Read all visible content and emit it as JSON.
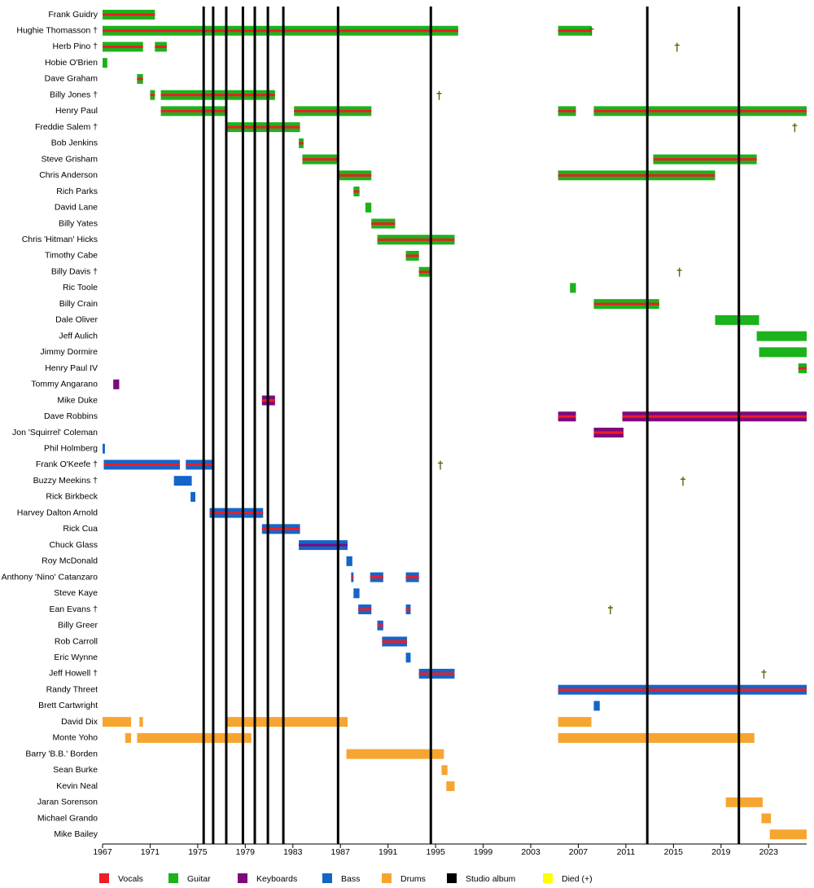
{
  "chart_data": {
    "type": "timeline",
    "xlim": [
      1967,
      2026.2
    ],
    "xticks": [
      1967,
      1971,
      1975,
      1979,
      1983,
      1987,
      1991,
      1995,
      1999,
      2003,
      2007,
      2011,
      2015,
      2019,
      2023
    ],
    "legend": [
      {
        "name": "Vocals",
        "color": "#ee1c25"
      },
      {
        "name": "Guitar",
        "color": "#1cb21c"
      },
      {
        "name": "Keyboards",
        "color": "#7d0a7d"
      },
      {
        "name": "Bass",
        "color": "#1565c8"
      },
      {
        "name": "Drums",
        "color": "#f7a531"
      },
      {
        "name": "Studio album",
        "color": "#000000"
      },
      {
        "name": "Died (+)",
        "color": "#ffff00"
      }
    ],
    "albums": [
      1975.5,
      1976.3,
      1977.4,
      1978.8,
      1979.8,
      1980.9,
      1982.2,
      1986.8,
      1994.6,
      2012.8,
      2020.5
    ],
    "members": [
      {
        "name": "Frank Guidry",
        "bars": [
          {
            "start": 1967.0,
            "end": 1971.4,
            "roles": [
              "Guitar",
              "Vocals"
            ]
          }
        ]
      },
      {
        "name": "Hughie Thomasson †",
        "died": 2008.1,
        "bars": [
          {
            "start": 1967.0,
            "end": 1996.9,
            "roles": [
              "Guitar",
              "Vocals"
            ]
          },
          {
            "start": 2005.3,
            "end": 2008.1,
            "roles": [
              "Guitar",
              "Vocals"
            ]
          }
        ]
      },
      {
        "name": "Herb Pino †",
        "died": 2015.3,
        "bars": [
          {
            "start": 1967.0,
            "end": 1970.4,
            "roles": [
              "Guitar",
              "Vocals"
            ]
          },
          {
            "start": 1971.4,
            "end": 1972.4,
            "roles": [
              "Guitar",
              "Vocals"
            ]
          }
        ]
      },
      {
        "name": "Hobie O'Brien",
        "bars": [
          {
            "start": 1967.0,
            "end": 1967.4,
            "roles": [
              "Guitar"
            ]
          }
        ]
      },
      {
        "name": "Dave Graham",
        "bars": [
          {
            "start": 1969.9,
            "end": 1970.4,
            "roles": [
              "Guitar",
              "Vocals"
            ]
          }
        ]
      },
      {
        "name": "Billy Jones †",
        "died": 1995.3,
        "bars": [
          {
            "start": 1971.0,
            "end": 1971.4,
            "roles": [
              "Guitar",
              "Vocals"
            ]
          },
          {
            "start": 1971.9,
            "end": 1981.5,
            "roles": [
              "Guitar",
              "Vocals"
            ]
          }
        ]
      },
      {
        "name": "Henry Paul",
        "bars": [
          {
            "start": 1971.9,
            "end": 1977.5,
            "roles": [
              "Guitar",
              "Vocals"
            ]
          },
          {
            "start": 1983.1,
            "end": 1989.6,
            "roles": [
              "Guitar",
              "Vocals"
            ]
          },
          {
            "start": 2005.3,
            "end": 2006.8,
            "roles": [
              "Guitar",
              "Vocals"
            ]
          },
          {
            "start": 2008.3,
            "end": 2026.2,
            "roles": [
              "Guitar",
              "Vocals"
            ]
          }
        ]
      },
      {
        "name": "Freddie Salem †",
        "died": 2025.2,
        "bars": [
          {
            "start": 1977.5,
            "end": 1983.6,
            "roles": [
              "Guitar",
              "Vocals"
            ]
          }
        ]
      },
      {
        "name": "Bob Jenkins",
        "bars": [
          {
            "start": 1983.5,
            "end": 1983.9,
            "roles": [
              "Guitar",
              "Vocals"
            ]
          }
        ]
      },
      {
        "name": "Steve Grisham",
        "bars": [
          {
            "start": 1983.8,
            "end": 1986.8,
            "roles": [
              "Guitar",
              "Vocals"
            ]
          },
          {
            "start": 2013.3,
            "end": 2022.0,
            "roles": [
              "Guitar",
              "Vocals"
            ]
          }
        ]
      },
      {
        "name": "Chris Anderson",
        "bars": [
          {
            "start": 1986.8,
            "end": 1989.6,
            "roles": [
              "Guitar",
              "Vocals"
            ]
          },
          {
            "start": 2005.3,
            "end": 2018.5,
            "roles": [
              "Guitar",
              "Vocals"
            ]
          }
        ]
      },
      {
        "name": "Rich Parks",
        "bars": [
          {
            "start": 1988.1,
            "end": 1988.6,
            "roles": [
              "Guitar",
              "Vocals"
            ]
          }
        ]
      },
      {
        "name": "David Lane",
        "bars": [
          {
            "start": 1989.1,
            "end": 1989.6,
            "roles": [
              "Guitar"
            ]
          }
        ]
      },
      {
        "name": "Billy Yates",
        "bars": [
          {
            "start": 1989.6,
            "end": 1991.6,
            "roles": [
              "Guitar",
              "Vocals"
            ]
          }
        ]
      },
      {
        "name": "Chris 'Hitman' Hicks",
        "bars": [
          {
            "start": 1990.1,
            "end": 1996.6,
            "roles": [
              "Guitar",
              "Vocals"
            ]
          }
        ]
      },
      {
        "name": "Timothy Cabe",
        "bars": [
          {
            "start": 1992.5,
            "end": 1993.6,
            "roles": [
              "Guitar",
              "Vocals"
            ]
          }
        ]
      },
      {
        "name": "Billy Davis †",
        "died": 2015.5,
        "bars": [
          {
            "start": 1993.6,
            "end": 1994.6,
            "roles": [
              "Guitar",
              "Vocals"
            ]
          }
        ]
      },
      {
        "name": "Ric Toole",
        "bars": [
          {
            "start": 2006.3,
            "end": 2006.8,
            "roles": [
              "Guitar"
            ]
          }
        ]
      },
      {
        "name": "Billy Crain",
        "bars": [
          {
            "start": 2008.3,
            "end": 2013.8,
            "roles": [
              "Guitar",
              "Vocals"
            ]
          }
        ]
      },
      {
        "name": "Dale Oliver",
        "bars": [
          {
            "start": 2018.5,
            "end": 2022.2,
            "roles": [
              "Guitar"
            ]
          }
        ]
      },
      {
        "name": "Jeff Aulich",
        "bars": [
          {
            "start": 2022.0,
            "end": 2026.2,
            "roles": [
              "Guitar"
            ]
          }
        ]
      },
      {
        "name": "Jimmy Dormire",
        "bars": [
          {
            "start": 2022.2,
            "end": 2026.2,
            "roles": [
              "Guitar"
            ]
          }
        ]
      },
      {
        "name": "Henry Paul IV",
        "bars": [
          {
            "start": 2025.5,
            "end": 2026.2,
            "roles": [
              "Guitar",
              "Vocals"
            ]
          }
        ]
      },
      {
        "name": "Tommy Angarano",
        "bars": [
          {
            "start": 1967.9,
            "end": 1968.4,
            "roles": [
              "Keyboards"
            ]
          }
        ]
      },
      {
        "name": "Mike Duke",
        "bars": [
          {
            "start": 1980.4,
            "end": 1981.5,
            "roles": [
              "Keyboards",
              "Vocals"
            ]
          }
        ]
      },
      {
        "name": "Dave Robbins",
        "bars": [
          {
            "start": 2005.3,
            "end": 2006.8,
            "roles": [
              "Keyboards",
              "Vocals"
            ]
          },
          {
            "start": 2010.7,
            "end": 2026.2,
            "roles": [
              "Keyboards",
              "Vocals"
            ]
          }
        ]
      },
      {
        "name": "Jon 'Squirrel' Coleman",
        "bars": [
          {
            "start": 2008.3,
            "end": 2010.8,
            "roles": [
              "Keyboards",
              "Vocals"
            ]
          }
        ]
      },
      {
        "name": "Phil Holmberg",
        "bars": [
          {
            "start": 1967.0,
            "end": 1967.2,
            "roles": [
              "Bass"
            ]
          }
        ]
      },
      {
        "name": "Frank O'Keefe †",
        "died": 1995.4,
        "bars": [
          {
            "start": 1967.1,
            "end": 1973.5,
            "roles": [
              "Bass",
              "Vocals"
            ]
          },
          {
            "start": 1974.0,
            "end": 1976.4,
            "roles": [
              "Bass",
              "Vocals"
            ]
          }
        ]
      },
      {
        "name": "Buzzy Meekins †",
        "died": 2015.8,
        "bars": [
          {
            "start": 1973.0,
            "end": 1974.5,
            "roles": [
              "Bass"
            ]
          }
        ]
      },
      {
        "name": "Rick Birkbeck",
        "bars": [
          {
            "start": 1974.4,
            "end": 1974.8,
            "roles": [
              "Bass"
            ]
          }
        ]
      },
      {
        "name": "Harvey Dalton Arnold",
        "bars": [
          {
            "start": 1976.0,
            "end": 1980.5,
            "roles": [
              "Bass",
              "Vocals"
            ]
          }
        ]
      },
      {
        "name": "Rick Cua",
        "bars": [
          {
            "start": 1980.4,
            "end": 1983.6,
            "roles": [
              "Bass",
              "Vocals"
            ]
          }
        ]
      },
      {
        "name": "Chuck Glass",
        "bars": [
          {
            "start": 1983.5,
            "end": 1987.6,
            "roles": [
              "Bass",
              "Keyboards"
            ]
          }
        ]
      },
      {
        "name": "Roy McDonald",
        "bars": [
          {
            "start": 1987.5,
            "end": 1988.0,
            "roles": [
              "Bass"
            ]
          }
        ]
      },
      {
        "name": "Anthony 'Nino' Catanzaro",
        "bars": [
          {
            "start": 1987.9,
            "end": 1988.1,
            "roles": [
              "Bass",
              "Vocals"
            ]
          },
          {
            "start": 1989.5,
            "end": 1990.6,
            "roles": [
              "Bass",
              "Vocals"
            ]
          },
          {
            "start": 1992.5,
            "end": 1993.6,
            "roles": [
              "Bass",
              "Vocals"
            ]
          }
        ]
      },
      {
        "name": "Steve Kaye",
        "bars": [
          {
            "start": 1988.1,
            "end": 1988.6,
            "roles": [
              "Bass"
            ]
          }
        ]
      },
      {
        "name": "Ean Evans †",
        "died": 2009.7,
        "bars": [
          {
            "start": 1988.5,
            "end": 1989.6,
            "roles": [
              "Bass",
              "Vocals"
            ]
          },
          {
            "start": 1992.5,
            "end": 1992.9,
            "roles": [
              "Bass",
              "Vocals"
            ]
          }
        ]
      },
      {
        "name": "Billy Greer",
        "bars": [
          {
            "start": 1990.1,
            "end": 1990.6,
            "roles": [
              "Bass",
              "Vocals"
            ]
          }
        ]
      },
      {
        "name": "Rob Carroll",
        "bars": [
          {
            "start": 1990.5,
            "end": 1992.6,
            "roles": [
              "Bass",
              "Vocals"
            ]
          }
        ]
      },
      {
        "name": "Eric Wynne",
        "bars": [
          {
            "start": 1992.5,
            "end": 1992.9,
            "roles": [
              "Bass"
            ]
          }
        ]
      },
      {
        "name": "Jeff Howell †",
        "died": 2022.6,
        "bars": [
          {
            "start": 1993.6,
            "end": 1996.6,
            "roles": [
              "Bass",
              "Vocals"
            ]
          }
        ]
      },
      {
        "name": "Randy Threet",
        "bars": [
          {
            "start": 2005.3,
            "end": 2026.2,
            "roles": [
              "Bass",
              "Vocals"
            ]
          }
        ]
      },
      {
        "name": "Brett Cartwright",
        "bars": [
          {
            "start": 2008.3,
            "end": 2008.8,
            "roles": [
              "Bass"
            ]
          }
        ]
      },
      {
        "name": "David Dix",
        "bars": [
          {
            "start": 1967.0,
            "end": 1969.4,
            "roles": [
              "Drums"
            ]
          },
          {
            "start": 1970.1,
            "end": 1970.4,
            "roles": [
              "Drums"
            ]
          },
          {
            "start": 1977.4,
            "end": 1987.6,
            "roles": [
              "Drums"
            ]
          },
          {
            "start": 2005.3,
            "end": 2008.1,
            "roles": [
              "Drums"
            ]
          }
        ]
      },
      {
        "name": "Monte Yoho",
        "bars": [
          {
            "start": 1968.9,
            "end": 1969.4,
            "roles": [
              "Drums"
            ]
          },
          {
            "start": 1969.9,
            "end": 1979.5,
            "roles": [
              "Drums"
            ]
          },
          {
            "start": 2005.3,
            "end": 2021.8,
            "roles": [
              "Drums"
            ]
          }
        ]
      },
      {
        "name": "Barry 'B.B.' Borden",
        "bars": [
          {
            "start": 1987.5,
            "end": 1995.7,
            "roles": [
              "Drums"
            ]
          }
        ]
      },
      {
        "name": "Sean Burke",
        "bars": [
          {
            "start": 1995.5,
            "end": 1996.0,
            "roles": [
              "Drums"
            ]
          }
        ]
      },
      {
        "name": "Kevin Neal",
        "bars": [
          {
            "start": 1995.9,
            "end": 1996.6,
            "roles": [
              "Drums"
            ]
          }
        ]
      },
      {
        "name": "Jaran Sorenson",
        "bars": [
          {
            "start": 2019.4,
            "end": 2022.5,
            "roles": [
              "Drums"
            ]
          }
        ]
      },
      {
        "name": "Michael Grando",
        "bars": [
          {
            "start": 2022.4,
            "end": 2023.2,
            "roles": [
              "Drums"
            ]
          }
        ]
      },
      {
        "name": "Mike Bailey",
        "bars": [
          {
            "start": 2023.1,
            "end": 2026.2,
            "roles": [
              "Drums"
            ]
          }
        ]
      }
    ]
  }
}
